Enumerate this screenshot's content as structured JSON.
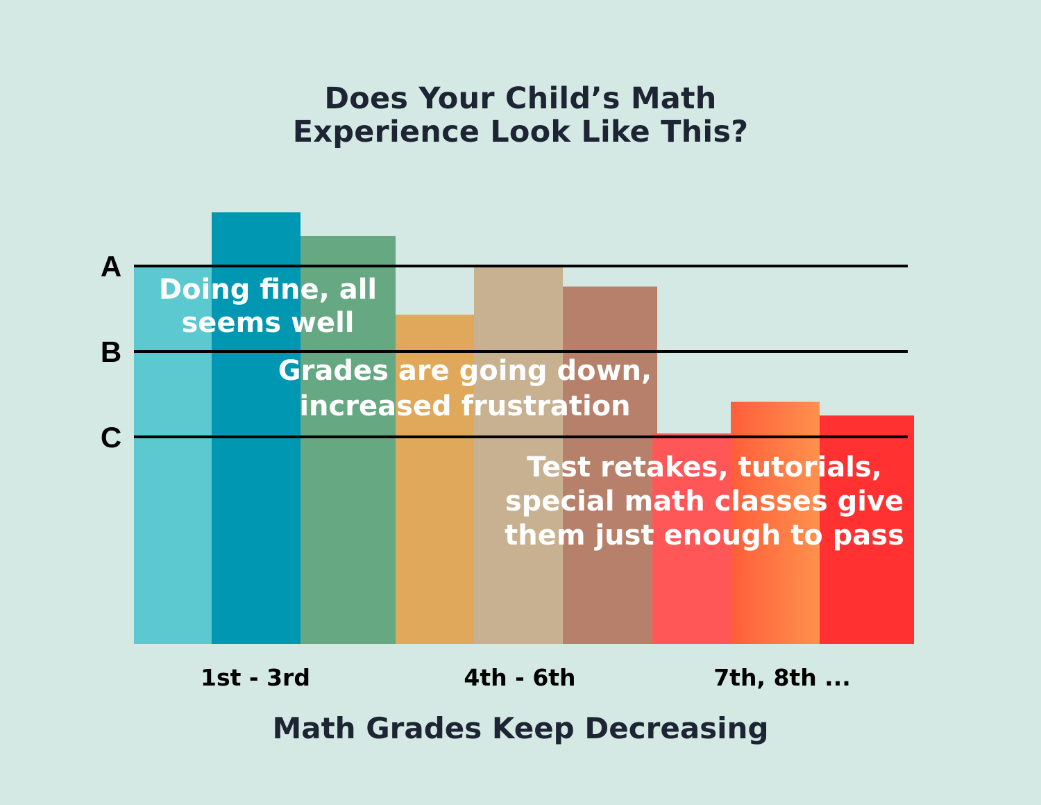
{
  "title_lines": [
    "Does Your Child’s Math",
    "Experience Look Like This?"
  ],
  "chart_data": {
    "type": "bar",
    "title": "Does Your Child’s Math Experience Look Like This?",
    "xlabel": "Math Grades Keep Decreasing",
    "ylabel": "",
    "y_scale": "letter grade (C = 0, B = 1, A = 2)",
    "ylim": [
      -2.35,
      2.63
    ],
    "grid": false,
    "legend": "none",
    "grade_lines": [
      {
        "label": "A",
        "value": 2
      },
      {
        "label": "B",
        "value": 1
      },
      {
        "label": "C",
        "value": 0
      }
    ],
    "category_labels": [
      "1st - 3rd",
      "4th - 6th",
      "7th, 8th ..."
    ],
    "groups": [
      {
        "category": "1st - 3rd",
        "bars": [
          {
            "value": 2.0,
            "color": "#5bc9cf"
          },
          {
            "value": 2.63,
            "color": "#0097b2"
          },
          {
            "value": 2.35,
            "color": "#66a882"
          }
        ]
      },
      {
        "category": "4th - 6th",
        "bars": [
          {
            "value": 1.43,
            "color": "#e0a85a"
          },
          {
            "value": 2.0,
            "color": "#c8b191"
          },
          {
            "value": 1.76,
            "color": "#b7806b"
          }
        ]
      },
      {
        "category": "7th, 8th ...",
        "bars": [
          {
            "value": 0.04,
            "color": "#ff5757"
          },
          {
            "value": 0.41,
            "color": "#ff5e3a",
            "color_end": "#ff914d"
          },
          {
            "value": 0.25,
            "color": "#ff3131"
          }
        ]
      }
    ],
    "annotations": [
      {
        "lines": [
          "Doing fine, all",
          "seems well"
        ]
      },
      {
        "lines": [
          "Grades are going down,",
          "increased frustration"
        ]
      },
      {
        "lines": [
          "Test retakes, tutorials,",
          "special math classes give",
          "them just enough to pass"
        ]
      }
    ]
  }
}
